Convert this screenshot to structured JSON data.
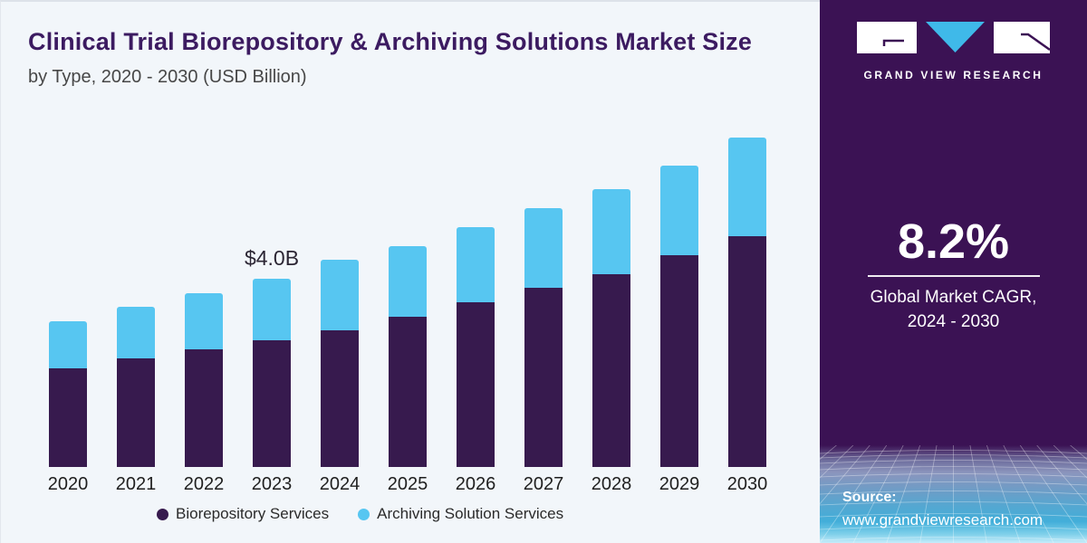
{
  "header": {
    "title": "Clinical Trial Biorepository & Archiving Solutions Market Size",
    "subtitle": "by Type, 2020 - 2030 (USD Billion)"
  },
  "chart_data": {
    "type": "bar",
    "stacked": true,
    "title": "Clinical Trial Biorepository & Archiving Solutions Market Size",
    "subtitle": "by Type, 2020 - 2030 (USD Billion)",
    "unit": "USD Billion",
    "categories": [
      "2020",
      "2021",
      "2022",
      "2023",
      "2024",
      "2025",
      "2026",
      "2027",
      "2028",
      "2029",
      "2030"
    ],
    "series": [
      {
        "name": "Biorepository Services",
        "color": "#371a4e",
        "values": [
          2.1,
          2.3,
          2.5,
          2.7,
          2.9,
          3.2,
          3.5,
          3.8,
          4.1,
          4.5,
          4.9
        ]
      },
      {
        "name": "Archiving Solution Services",
        "color": "#57c6f1",
        "values": [
          1.0,
          1.1,
          1.2,
          1.3,
          1.5,
          1.5,
          1.6,
          1.7,
          1.8,
          1.9,
          2.1
        ]
      }
    ],
    "totals": [
      3.1,
      3.4,
      3.7,
      4.0,
      4.4,
      4.7,
      5.1,
      5.5,
      5.9,
      6.4,
      7.0
    ],
    "annotation": {
      "text": "$4.0B",
      "category": "2023"
    },
    "xlabel": "",
    "ylabel": "",
    "ylim": [
      0,
      7.2
    ],
    "grid": false,
    "legend_position": "bottom"
  },
  "sidebar": {
    "logo": {
      "brand": "GRAND VIEW RESEARCH"
    },
    "stat": {
      "value": "8.2%",
      "label": "Global Market CAGR, 2024 - 2030"
    },
    "source": {
      "label": "Source:",
      "url": "www.grandviewresearch.com"
    }
  },
  "colors": {
    "bar_dark": "#371a4e",
    "bar_cyan": "#57c6f1",
    "sidebar_bg": "#3b1254",
    "title_text": "#3c1b61",
    "panel_bg": "#f2f6fa",
    "logo_triangle": "#3fb9e9"
  }
}
